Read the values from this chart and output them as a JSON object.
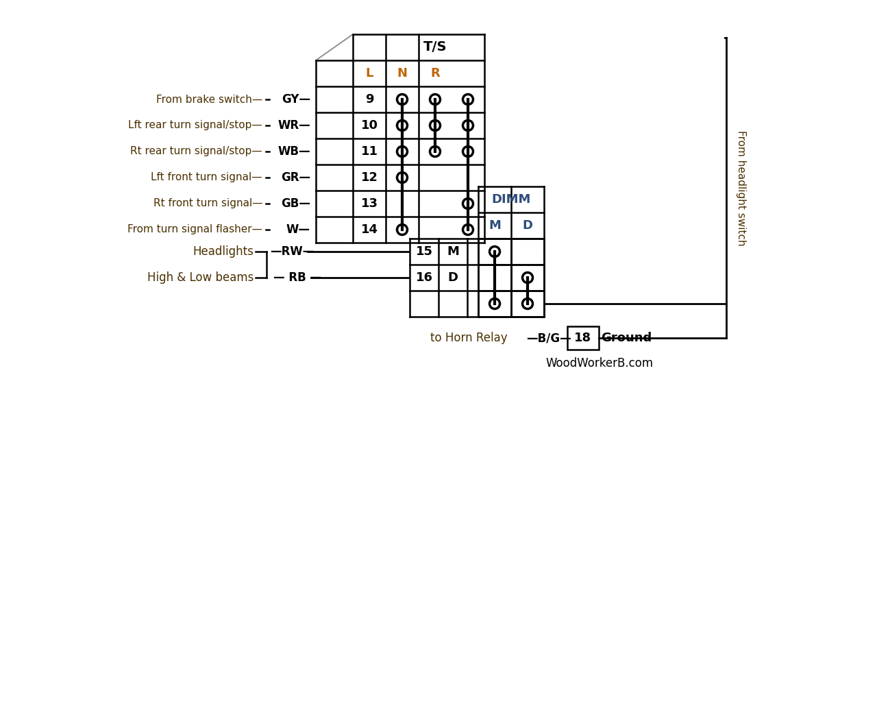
{
  "bg_color": "#ffffff",
  "black": "#000000",
  "blue": "#2e4d7b",
  "orange": "#c0660a",
  "dark_brown": "#4a3000",
  "watermark": "WoodWorkerB.com",
  "ts_header": "T/S",
  "dimm_header": "DIMM",
  "left_labels": [
    "From brake switch",
    "Lft rear turn signal/stop",
    "Rt rear turn signal/stop",
    "Lft front turn signal",
    "Rt front turn signal",
    "From turn signal flasher"
  ],
  "wire_codes": [
    "GY",
    "WR",
    "WB",
    "GR",
    "GB",
    "W"
  ],
  "pin_numbers_ts": [
    "9",
    "10",
    "11",
    "12",
    "13",
    "14"
  ],
  "ts_cols": [
    "L",
    "N",
    "R"
  ],
  "headlight_labels": [
    "Headlights",
    "High & Low beams"
  ],
  "headlight_wires": [
    "RW",
    "RB"
  ],
  "headlight_pins": [
    "15",
    "16"
  ],
  "headlight_md": [
    "M",
    "D"
  ],
  "dimm_cols": [
    "M",
    "D"
  ],
  "horn_label": "to Horn Relay",
  "horn_wire": "B/G",
  "horn_pin": "18",
  "ground_label": "Ground",
  "hs_label": "From headlight switch"
}
